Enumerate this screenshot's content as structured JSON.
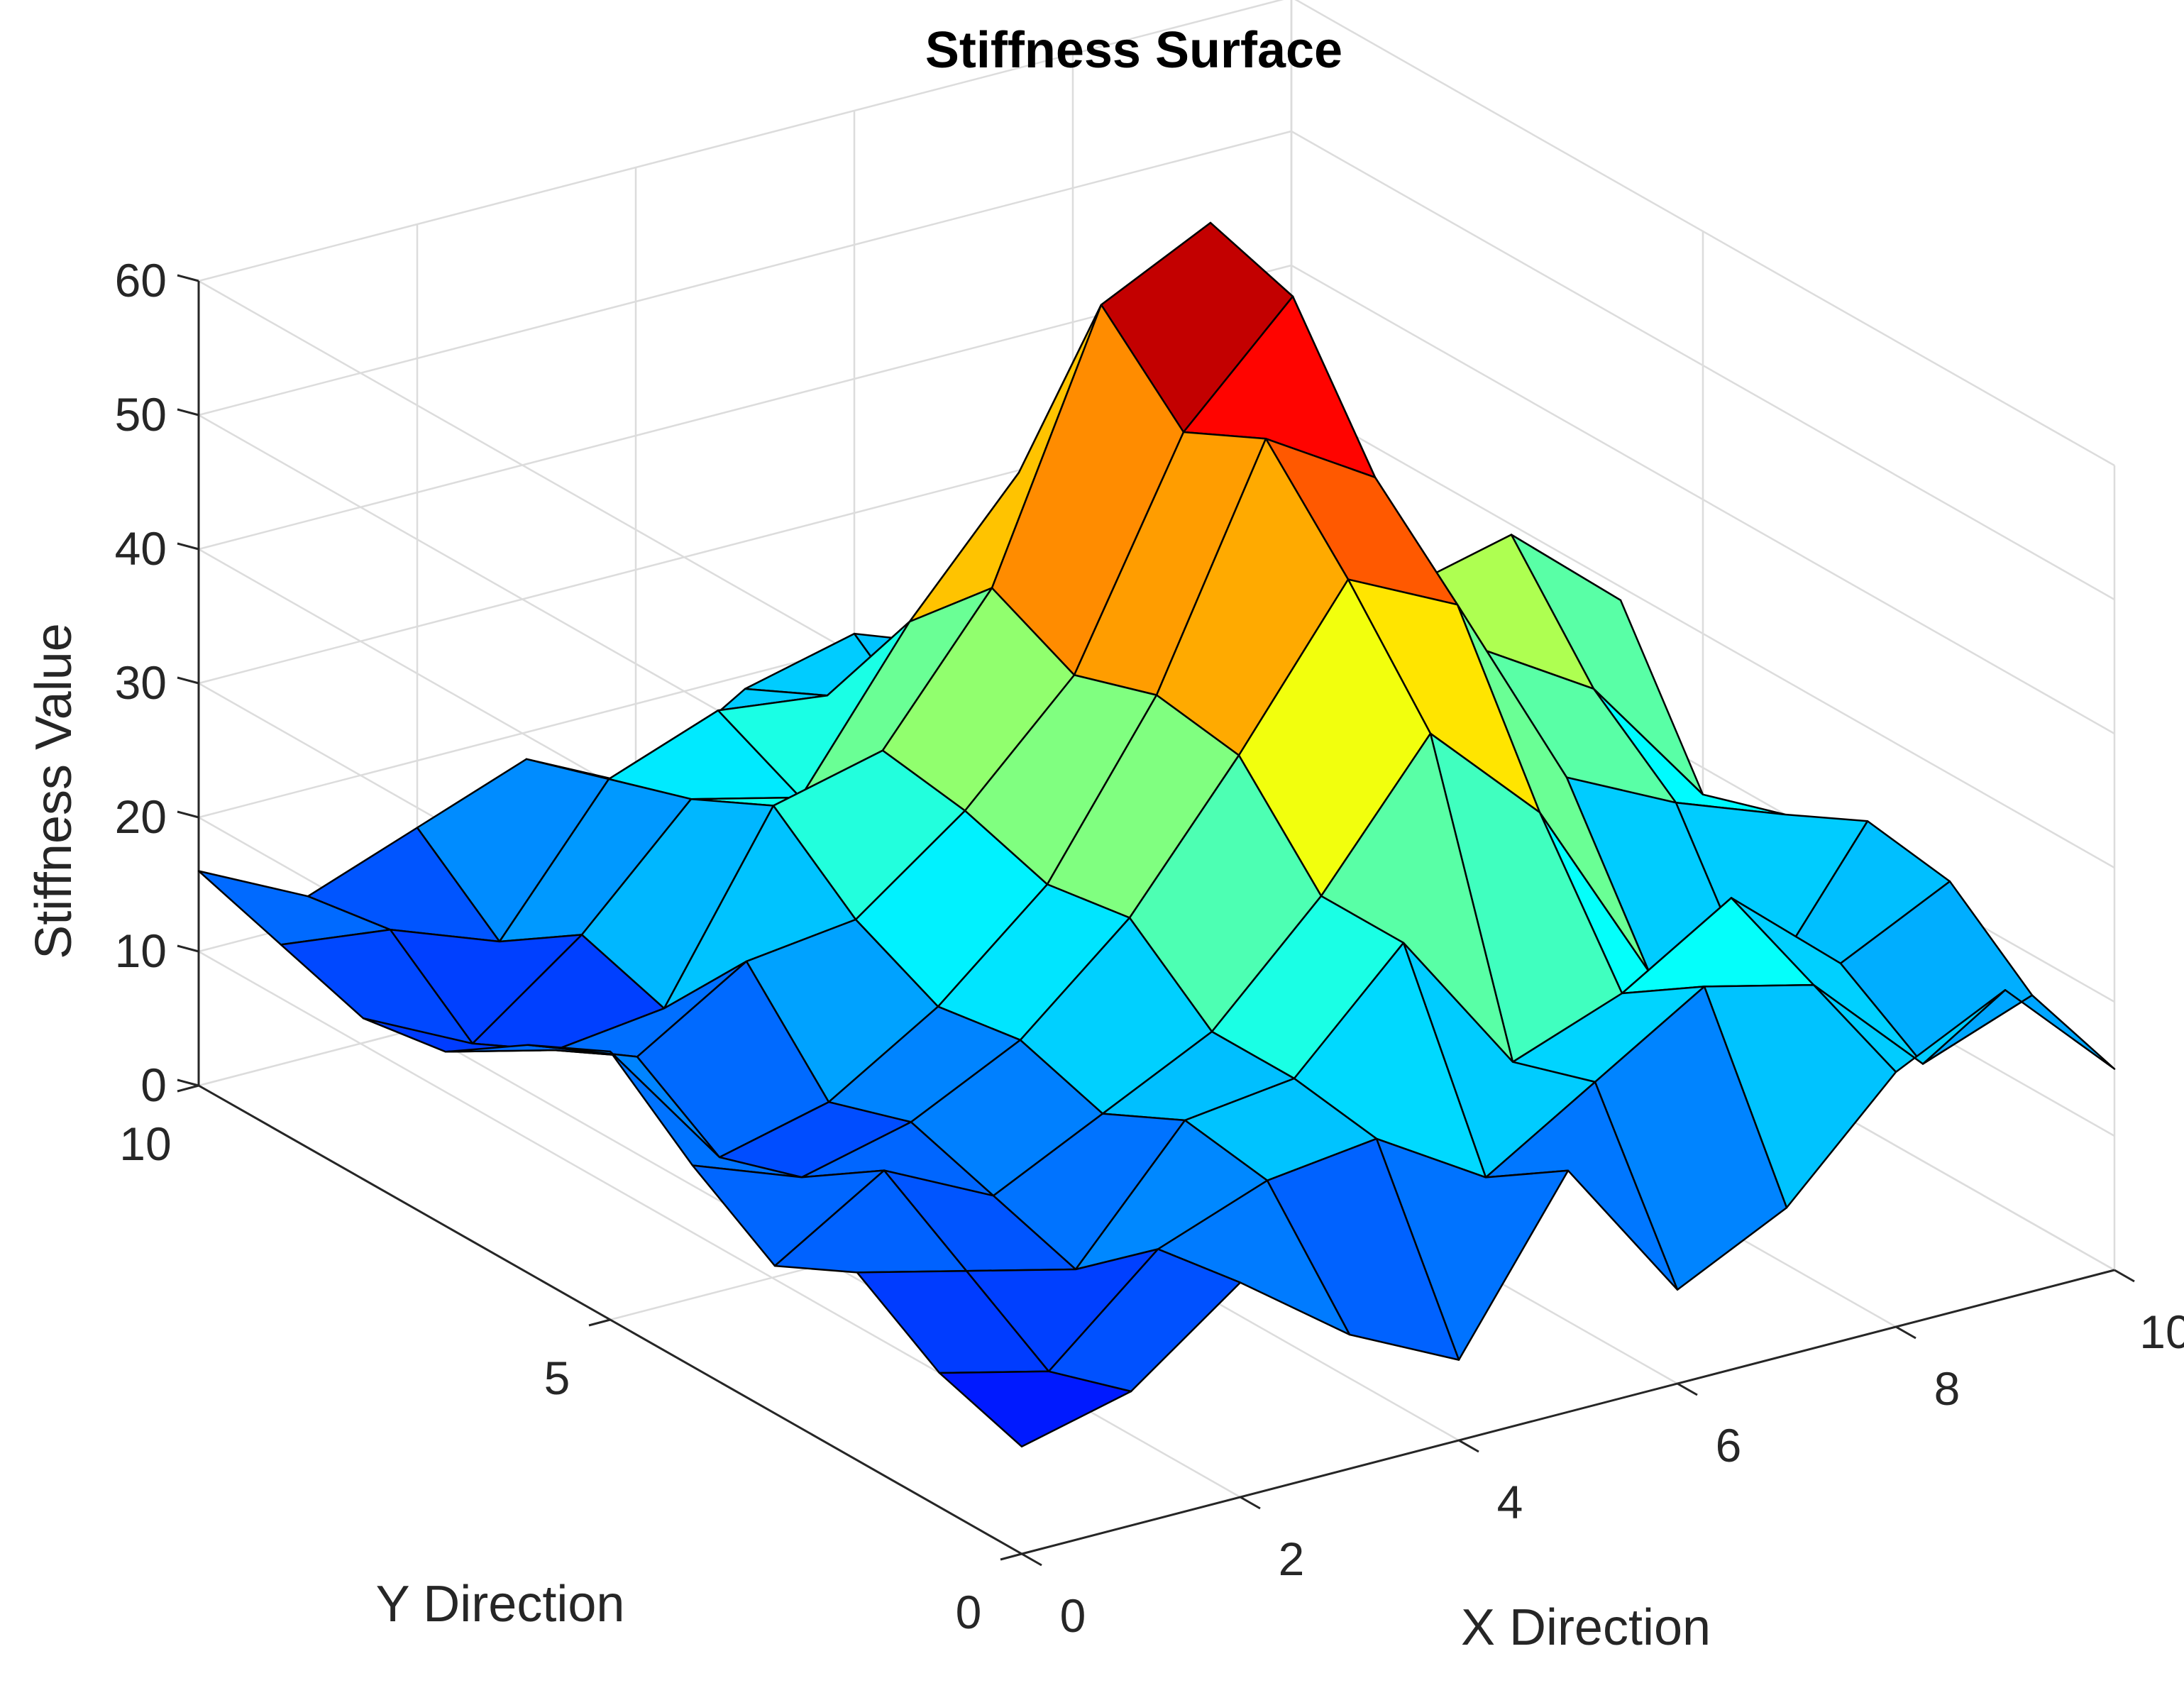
{
  "chart_data": {
    "type": "surface",
    "title": "Stiffness Surface",
    "xlabel": "X Direction",
    "ylabel": "Y Direction",
    "zlabel": "Stiffness Value",
    "xlim": [
      0,
      10
    ],
    "ylim": [
      0,
      10
    ],
    "zlim": [
      0,
      60
    ],
    "x_ticks": [
      0,
      2,
      4,
      6,
      8,
      10
    ],
    "y_ticks": [
      0,
      5,
      10
    ],
    "z_ticks": [
      0,
      10,
      20,
      30,
      40,
      50,
      60
    ],
    "grid": true,
    "colormap": "jet",
    "color_limits": [
      0,
      60
    ],
    "x": [
      0,
      1,
      2,
      3,
      4,
      5,
      6,
      7,
      8,
      9,
      10
    ],
    "y": [
      0,
      1,
      2,
      3,
      4,
      5,
      6,
      7,
      8,
      9,
      10
    ],
    "z": [
      [
        8,
        10,
        16,
        10,
        6,
        18,
        7,
        11,
        19,
        23,
        15
      ],
      [
        10,
        8,
        15,
        18,
        19,
        14,
        19,
        24,
        22,
        14,
        17
      ],
      [
        14,
        12,
        10,
        19,
        20,
        28,
        17,
        20,
        25,
        18,
        22
      ],
      [
        11,
        16,
        12,
        16,
        20,
        28,
        38,
        30,
        16,
        12,
        23
      ],
      [
        15,
        12,
        14,
        18,
        25,
        35,
        46,
        42,
        27,
        23,
        20
      ],
      [
        20,
        10,
        12,
        17,
        24,
        36,
        53,
        48,
        33,
        28,
        18
      ],
      [
        17,
        14,
        19,
        20,
        26,
        34,
        50,
        58,
        34,
        36,
        29
      ],
      [
        13,
        11,
        12,
        25,
        27,
        37,
        56,
        60,
        41,
        26,
        16
      ],
      [
        12,
        8,
        14,
        22,
        20,
        31,
        40,
        44,
        36,
        24,
        19
      ],
      [
        14,
        13,
        10,
        20,
        23,
        22,
        16,
        21,
        26,
        28,
        22
      ],
      [
        16,
        12,
        15,
        18,
        14,
        19,
        21,
        18,
        15,
        22,
        20
      ]
    ]
  }
}
